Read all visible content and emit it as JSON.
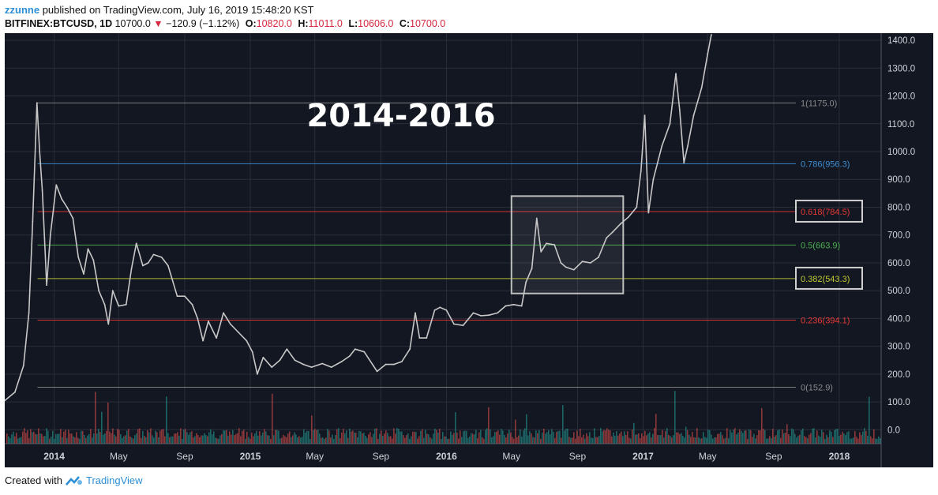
{
  "header": {
    "author": "zzunne",
    "published_text": "published on TradingView.com, July 16, 2019 15:48:20 KST",
    "symbol": "BITFINEX:BTCUSD, 1D",
    "last_price": "10700.0",
    "change_arrow": "▼",
    "change": "−120.9 (−1.12%)",
    "open_label": "O:",
    "open": "10820.0",
    "high_label": "H:",
    "high": "11011.0",
    "low_label": "L:",
    "low": "10606.0",
    "close_label": "C:",
    "close": "10700.0"
  },
  "footer": {
    "created_with": "Created with",
    "brand": "TradingView"
  },
  "colors": {
    "background": "#131722",
    "up": "#26a69a",
    "down": "#ef5350",
    "price_line": "#c8c8c8",
    "fib_1": "#8a8a8a",
    "fib_0786": "#3e8ed0",
    "fib_0618": "#e53935",
    "fib_05": "#4caf50",
    "fib_0382": "#c0ca33",
    "fib_0236": "#e53935",
    "fib_0": "#8a8a8a"
  },
  "chart_data": {
    "type": "line",
    "title": "2014-2016",
    "xlabel": "",
    "ylabel": "",
    "ylim": [
      -50,
      1420
    ],
    "y_ticks": [
      0,
      100,
      200,
      300,
      400,
      500,
      600,
      700,
      800,
      900,
      1000,
      1100,
      1200,
      1300,
      1400
    ],
    "y_tick_labels": [
      "0.0",
      "100.0",
      "200.0",
      "300.0",
      "400.0",
      "500.0",
      "600.0",
      "700.0",
      "800.0",
      "900.0",
      "1000.0",
      "1100.0",
      "1200.0",
      "1300.0",
      "1400.0"
    ],
    "x_ticks": [
      {
        "date": "2014-01-01",
        "label": "2014"
      },
      {
        "date": "2014-05-01",
        "label": "May"
      },
      {
        "date": "2014-09-01",
        "label": "Sep"
      },
      {
        "date": "2015-01-01",
        "label": "2015"
      },
      {
        "date": "2015-05-01",
        "label": "May"
      },
      {
        "date": "2015-09-01",
        "label": "Sep"
      },
      {
        "date": "2016-01-01",
        "label": "2016"
      },
      {
        "date": "2016-05-01",
        "label": "May"
      },
      {
        "date": "2016-09-01",
        "label": "Sep"
      },
      {
        "date": "2017-01-01",
        "label": "2017"
      },
      {
        "date": "2017-05-01",
        "label": "May"
      },
      {
        "date": "2017-09-01",
        "label": "Sep"
      },
      {
        "date": "2018-01-01",
        "label": "2018"
      }
    ],
    "x_range": [
      "2013-10-01",
      "2018-03-20"
    ],
    "series": [
      {
        "values": [
          [
            "2013-10-01",
            105
          ],
          [
            "2013-10-20",
            135
          ],
          [
            "2013-11-05",
            230
          ],
          [
            "2013-11-15",
            420
          ],
          [
            "2013-11-22",
            750
          ],
          [
            "2013-11-30",
            1175
          ],
          [
            "2013-12-05",
            1000
          ],
          [
            "2013-12-10",
            860
          ],
          [
            "2013-12-18",
            520
          ],
          [
            "2013-12-25",
            700
          ],
          [
            "2014-01-05",
            880
          ],
          [
            "2014-01-15",
            830
          ],
          [
            "2014-01-25",
            800
          ],
          [
            "2014-02-05",
            760
          ],
          [
            "2014-02-15",
            620
          ],
          [
            "2014-02-25",
            560
          ],
          [
            "2014-03-05",
            650
          ],
          [
            "2014-03-15",
            610
          ],
          [
            "2014-03-25",
            500
          ],
          [
            "2014-04-05",
            450
          ],
          [
            "2014-04-12",
            380
          ],
          [
            "2014-04-20",
            500
          ],
          [
            "2014-05-01",
            445
          ],
          [
            "2014-05-15",
            450
          ],
          [
            "2014-05-25",
            580
          ],
          [
            "2014-06-03",
            670
          ],
          [
            "2014-06-15",
            590
          ],
          [
            "2014-06-25",
            600
          ],
          [
            "2014-07-05",
            630
          ],
          [
            "2014-07-20",
            620
          ],
          [
            "2014-08-01",
            590
          ],
          [
            "2014-08-18",
            480
          ],
          [
            "2014-09-01",
            480
          ],
          [
            "2014-09-15",
            450
          ],
          [
            "2014-09-25",
            400
          ],
          [
            "2014-10-05",
            320
          ],
          [
            "2014-10-15",
            390
          ],
          [
            "2014-10-30",
            330
          ],
          [
            "2014-11-12",
            420
          ],
          [
            "2014-11-25",
            380
          ],
          [
            "2014-12-10",
            350
          ],
          [
            "2014-12-25",
            320
          ],
          [
            "2015-01-05",
            280
          ],
          [
            "2015-01-14",
            200
          ],
          [
            "2015-01-25",
            260
          ],
          [
            "2015-02-10",
            225
          ],
          [
            "2015-02-25",
            250
          ],
          [
            "2015-03-10",
            290
          ],
          [
            "2015-03-25",
            250
          ],
          [
            "2015-04-10",
            235
          ],
          [
            "2015-04-25",
            225
          ],
          [
            "2015-05-15",
            238
          ],
          [
            "2015-06-01",
            225
          ],
          [
            "2015-06-20",
            245
          ],
          [
            "2015-07-05",
            265
          ],
          [
            "2015-07-15",
            290
          ],
          [
            "2015-08-01",
            280
          ],
          [
            "2015-08-18",
            230
          ],
          [
            "2015-08-25",
            210
          ],
          [
            "2015-09-10",
            235
          ],
          [
            "2015-09-25",
            235
          ],
          [
            "2015-10-10",
            245
          ],
          [
            "2015-10-25",
            290
          ],
          [
            "2015-11-04",
            420
          ],
          [
            "2015-11-12",
            330
          ],
          [
            "2015-11-25",
            330
          ],
          [
            "2015-12-10",
            430
          ],
          [
            "2015-12-20",
            440
          ],
          [
            "2016-01-01",
            430
          ],
          [
            "2016-01-15",
            380
          ],
          [
            "2016-02-01",
            375
          ],
          [
            "2016-02-20",
            420
          ],
          [
            "2016-03-05",
            410
          ],
          [
            "2016-03-20",
            412
          ],
          [
            "2016-04-05",
            420
          ],
          [
            "2016-04-20",
            445
          ],
          [
            "2016-05-05",
            450
          ],
          [
            "2016-05-20",
            445
          ],
          [
            "2016-05-28",
            530
          ],
          [
            "2016-06-08",
            580
          ],
          [
            "2016-06-17",
            760
          ],
          [
            "2016-06-25",
            640
          ],
          [
            "2016-07-05",
            670
          ],
          [
            "2016-07-20",
            665
          ],
          [
            "2016-08-01",
            600
          ],
          [
            "2016-08-10",
            585
          ],
          [
            "2016-08-25",
            575
          ],
          [
            "2016-09-10",
            605
          ],
          [
            "2016-09-25",
            600
          ],
          [
            "2016-10-10",
            620
          ],
          [
            "2016-10-25",
            690
          ],
          [
            "2016-11-05",
            710
          ],
          [
            "2016-11-20",
            740
          ],
          [
            "2016-12-05",
            765
          ],
          [
            "2016-12-20",
            800
          ],
          [
            "2016-12-28",
            930
          ],
          [
            "2017-01-04",
            1130
          ],
          [
            "2017-01-11",
            780
          ],
          [
            "2017-01-20",
            900
          ],
          [
            "2017-02-05",
            1020
          ],
          [
            "2017-02-20",
            1100
          ],
          [
            "2017-03-03",
            1280
          ],
          [
            "2017-03-10",
            1150
          ],
          [
            "2017-03-18",
            960
          ],
          [
            "2017-03-25",
            1020
          ],
          [
            "2017-04-05",
            1130
          ],
          [
            "2017-04-20",
            1230
          ],
          [
            "2017-05-01",
            1350
          ],
          [
            "2017-05-08",
            1420
          ]
        ]
      }
    ],
    "fib_levels": [
      {
        "ratio": "1",
        "value": 1175.0,
        "label": "1(1175.0)",
        "color_key": "fib_1",
        "start": "2013-12-01",
        "boxed": false
      },
      {
        "ratio": "0.786",
        "value": 956.3,
        "label": "0.786(956.3)",
        "color_key": "fib_0786",
        "start": "2013-12-01",
        "boxed": false
      },
      {
        "ratio": "0.618",
        "value": 784.5,
        "label": "0.618(784.5)",
        "color_key": "fib_0618",
        "start": "2013-12-01",
        "boxed": true
      },
      {
        "ratio": "0.5",
        "value": 663.9,
        "label": "0.5(663.9)",
        "color_key": "fib_05",
        "start": "2013-12-01",
        "boxed": false
      },
      {
        "ratio": "0.382",
        "value": 543.3,
        "label": "0.382(543.3)",
        "color_key": "fib_0382",
        "start": "2013-12-01",
        "boxed": true
      },
      {
        "ratio": "0.236",
        "value": 394.1,
        "label": "0.236(394.1)",
        "color_key": "fib_0236",
        "start": "2013-12-01",
        "boxed": false
      },
      {
        "ratio": "0",
        "value": 152.9,
        "label": "0(152.9)",
        "color_key": "fib_0",
        "start": "2013-12-01",
        "boxed": false
      }
    ],
    "highlight_box": {
      "x_start": "2016-05-01",
      "x_end": "2016-11-25",
      "y_low": 490,
      "y_high": 840
    },
    "volume": {
      "max": 1,
      "seed": 7
    }
  }
}
